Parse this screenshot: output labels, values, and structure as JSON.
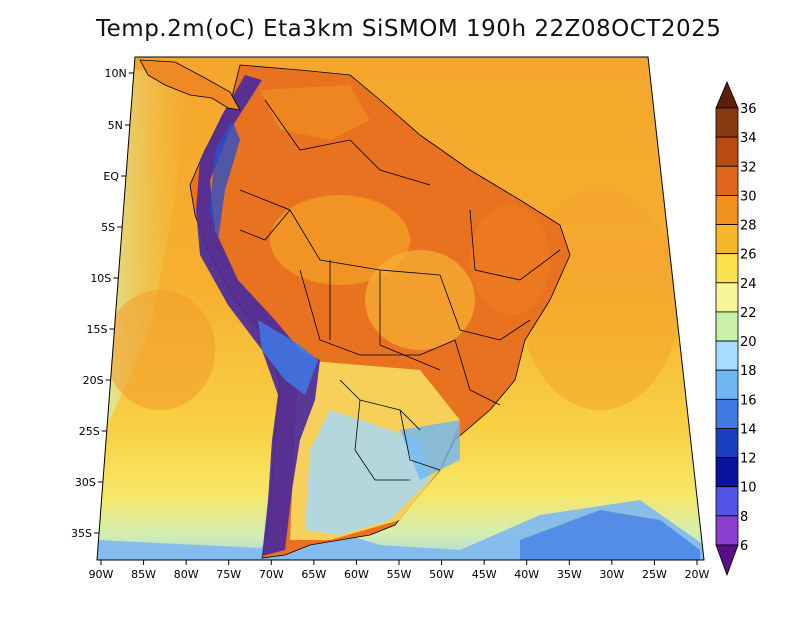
{
  "title": "Temp.2m(oC) Eta3km SiSMOM 190h 22Z08OCT2025",
  "lat_ticks": [
    "10N",
    "5N",
    "EQ",
    "5S",
    "10S",
    "15S",
    "20S",
    "25S",
    "30S",
    "35S"
  ],
  "lon_ticks": [
    "90W",
    "85W",
    "80W",
    "75W",
    "70W",
    "65W",
    "60W",
    "55W",
    "50W",
    "45W",
    "40W",
    "35W",
    "30W",
    "25W",
    "20W"
  ],
  "colorbar": {
    "labels": [
      "36",
      "34",
      "32",
      "30",
      "28",
      "26",
      "24",
      "22",
      "20",
      "18",
      "16",
      "14",
      "12",
      "10",
      "8",
      "6"
    ],
    "colors": [
      "#5a2a12",
      "#8a3a12",
      "#b94a14",
      "#e0661a",
      "#f3901e",
      "#f7b72a",
      "#fbe04d",
      "#f8f49a",
      "#c9f0a8",
      "#a6dcff",
      "#6fb6f5",
      "#3f79e6",
      "#1c3fbf",
      "#0a12a0",
      "#5055e8",
      "#8a3fd0",
      "#5b0d8c"
    ],
    "arrow_colors": {
      "top": "#5a1e0a",
      "bottom": "#5b0d8c"
    }
  },
  "colors": {
    "ocean_warm": "#f6a72c",
    "ocean_mid": "#f7c53a",
    "ocean_cool": "#f9e364",
    "land_hot": "#e66b1c",
    "andes": "#4a2a9a",
    "south_cool": "#8cc3f1",
    "border": "#000000"
  }
}
